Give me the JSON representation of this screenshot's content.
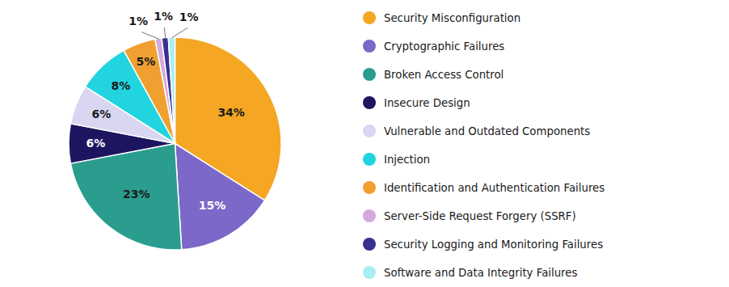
{
  "chart_data": {
    "type": "pie",
    "categories": [
      "Security Misconfiguration",
      "Cryptographic Failures",
      "Broken Access Control",
      "Insecure Design",
      "Vulnerable and Outdated Components",
      "Injection",
      "Identification and Authentication Failures",
      "Server-Side Request Forgery (SSRF)",
      "Security Logging and Monitoring Failures",
      "Software and Data Integrity Failures"
    ],
    "values": [
      34,
      15,
      23,
      6,
      6,
      8,
      5,
      1,
      1,
      1
    ],
    "value_labels": [
      "34%",
      "15%",
      "23%",
      "6%",
      "6%",
      "8%",
      "5%",
      "1%",
      "1%",
      "1%"
    ],
    "colors": [
      "#F5A623",
      "#7B68C8",
      "#2A9D8F",
      "#1E1560",
      "#D8D6F0",
      "#22D4E0",
      "#F0A030",
      "#D4AADC",
      "#3A3090",
      "#A8EEF4"
    ],
    "data_labels": true,
    "legend": "right"
  }
}
